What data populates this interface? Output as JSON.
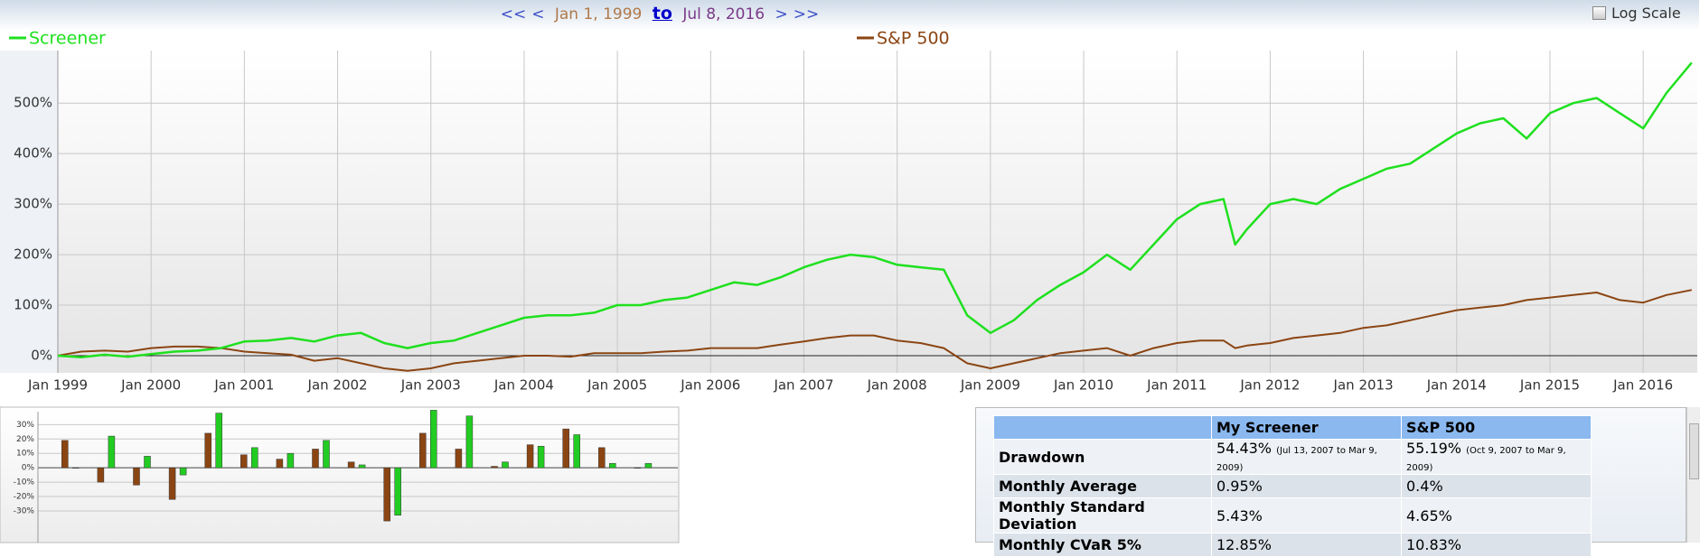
{
  "nav": {
    "first": "<<",
    "prev": "<",
    "start": "Jan 1, 1999",
    "to": "to",
    "end": "Jul 8, 2016",
    "next": ">",
    "last": ">>"
  },
  "log_scale": "Log Scale",
  "chart_data": [
    {
      "type": "line",
      "x": [
        1999,
        1999.25,
        1999.5,
        1999.75,
        2000,
        2000.25,
        2000.5,
        2000.75,
        2001,
        2001.25,
        2001.5,
        2001.75,
        2002,
        2002.25,
        2002.5,
        2002.75,
        2003,
        2003.25,
        2003.5,
        2003.75,
        2004,
        2004.25,
        2004.5,
        2004.75,
        2005,
        2005.25,
        2005.5,
        2005.75,
        2006,
        2006.25,
        2006.5,
        2006.75,
        2007,
        2007.25,
        2007.5,
        2007.75,
        2008,
        2008.25,
        2008.5,
        2008.75,
        2009,
        2009.25,
        2009.5,
        2009.75,
        2010,
        2010.25,
        2010.5,
        2010.75,
        2011,
        2011.25,
        2011.5,
        2011.625,
        2011.75,
        2012,
        2012.25,
        2012.5,
        2012.75,
        2013,
        2013.25,
        2013.5,
        2013.75,
        2014,
        2014.25,
        2014.5,
        2014.75,
        2015,
        2015.25,
        2015.5,
        2015.75,
        2016,
        2016.25,
        2016.52
      ],
      "series": [
        {
          "name": "Screener",
          "color": "#1fe01f",
          "values": [
            0,
            -3,
            2,
            -2,
            3,
            8,
            10,
            15,
            28,
            30,
            35,
            28,
            40,
            45,
            25,
            15,
            25,
            30,
            45,
            60,
            75,
            80,
            80,
            85,
            100,
            100,
            110,
            115,
            130,
            145,
            140,
            155,
            175,
            190,
            200,
            195,
            180,
            175,
            170,
            80,
            45,
            70,
            110,
            140,
            165,
            200,
            170,
            220,
            270,
            300,
            310,
            220,
            250,
            300,
            310,
            300,
            330,
            350,
            370,
            380,
            410,
            440,
            460,
            470,
            430,
            480,
            500,
            510,
            480,
            450,
            520,
            580
          ]
        },
        {
          "name": "S&P 500",
          "color": "#8b4513",
          "values": [
            0,
            8,
            10,
            8,
            15,
            18,
            18,
            15,
            8,
            5,
            2,
            -10,
            -5,
            -15,
            -25,
            -30,
            -25,
            -15,
            -10,
            -5,
            0,
            0,
            -2,
            5,
            5,
            5,
            8,
            10,
            15,
            15,
            15,
            22,
            28,
            35,
            40,
            40,
            30,
            25,
            15,
            -15,
            -25,
            -15,
            -5,
            5,
            10,
            15,
            0,
            15,
            25,
            30,
            30,
            15,
            20,
            25,
            35,
            40,
            45,
            55,
            60,
            70,
            80,
            90,
            95,
            100,
            110,
            115,
            120,
            125,
            110,
            105,
            120,
            130
          ]
        }
      ],
      "xlim": [
        1999,
        2016.58
      ],
      "xticks": [
        {
          "value": 1999,
          "label": "Jan 1999"
        },
        {
          "value": 2000,
          "label": "Jan 2000"
        },
        {
          "value": 2001,
          "label": "Jan 2001"
        },
        {
          "value": 2002,
          "label": "Jan 2002"
        },
        {
          "value": 2003,
          "label": "Jan 2003"
        },
        {
          "value": 2004,
          "label": "Jan 2004"
        },
        {
          "value": 2005,
          "label": "Jan 2005"
        },
        {
          "value": 2006,
          "label": "Jan 2006"
        },
        {
          "value": 2007,
          "label": "Jan 2007"
        },
        {
          "value": 2008,
          "label": "Jan 2008"
        },
        {
          "value": 2009,
          "label": "Jan 2009"
        },
        {
          "value": 2010,
          "label": "Jan 2010"
        },
        {
          "value": 2011,
          "label": "Jan 2011"
        },
        {
          "value": 2012,
          "label": "Jan 2012"
        },
        {
          "value": 2013,
          "label": "Jan 2013"
        },
        {
          "value": 2014,
          "label": "Jan 2014"
        },
        {
          "value": 2015,
          "label": "Jan 2015"
        },
        {
          "value": 2016,
          "label": "Jan 2016"
        }
      ],
      "ylim": [
        -34,
        604
      ],
      "yticks": [
        {
          "value": 0,
          "label": "0%"
        },
        {
          "value": 100,
          "label": "100%"
        },
        {
          "value": 200,
          "label": "200%"
        },
        {
          "value": 300,
          "label": "300%"
        },
        {
          "value": 400,
          "label": "400%"
        },
        {
          "value": 500,
          "label": "500%"
        }
      ],
      "grid": true
    },
    {
      "type": "bar",
      "series": [
        {
          "color": "#8b4513",
          "values": [
            19,
            -10,
            -12,
            -22,
            24,
            9,
            6,
            13,
            4,
            -37,
            24,
            13,
            1,
            16,
            27,
            14,
            0
          ]
        },
        {
          "color": "#22cc22",
          "values": [
            0,
            22,
            8,
            -5,
            38,
            14,
            10,
            19,
            2,
            -33,
            40,
            36,
            4,
            15,
            23,
            3,
            3
          ]
        }
      ],
      "ylim": [
        -52,
        39
      ],
      "yticks": [
        {
          "value": -30,
          "label": "-30%"
        },
        {
          "value": -20,
          "label": "-20%"
        },
        {
          "value": -10,
          "label": "-10%"
        },
        {
          "value": 0,
          "label": "0%"
        },
        {
          "value": 10,
          "label": "10%"
        },
        {
          "value": 20,
          "label": "20%"
        },
        {
          "value": 30,
          "label": "30%"
        }
      ],
      "grid": true
    }
  ],
  "table": {
    "header": [
      "My Screener",
      "S&P 500"
    ],
    "rows": [
      [
        "Drawdown",
        {
          "text": "54.43%",
          "note": "(Jul 13, 2007 to Mar 9, 2009)"
        },
        {
          "text": "55.19%",
          "note": "(Oct 9, 2007 to Mar 9, 2009)"
        }
      ],
      [
        "Monthly Average",
        "0.95%",
        "0.4%"
      ],
      [
        "Monthly Standard Deviation",
        "5.43%",
        "4.65%"
      ],
      [
        "Monthly CVaR 5%",
        "12.85%",
        "10.83%"
      ]
    ]
  }
}
